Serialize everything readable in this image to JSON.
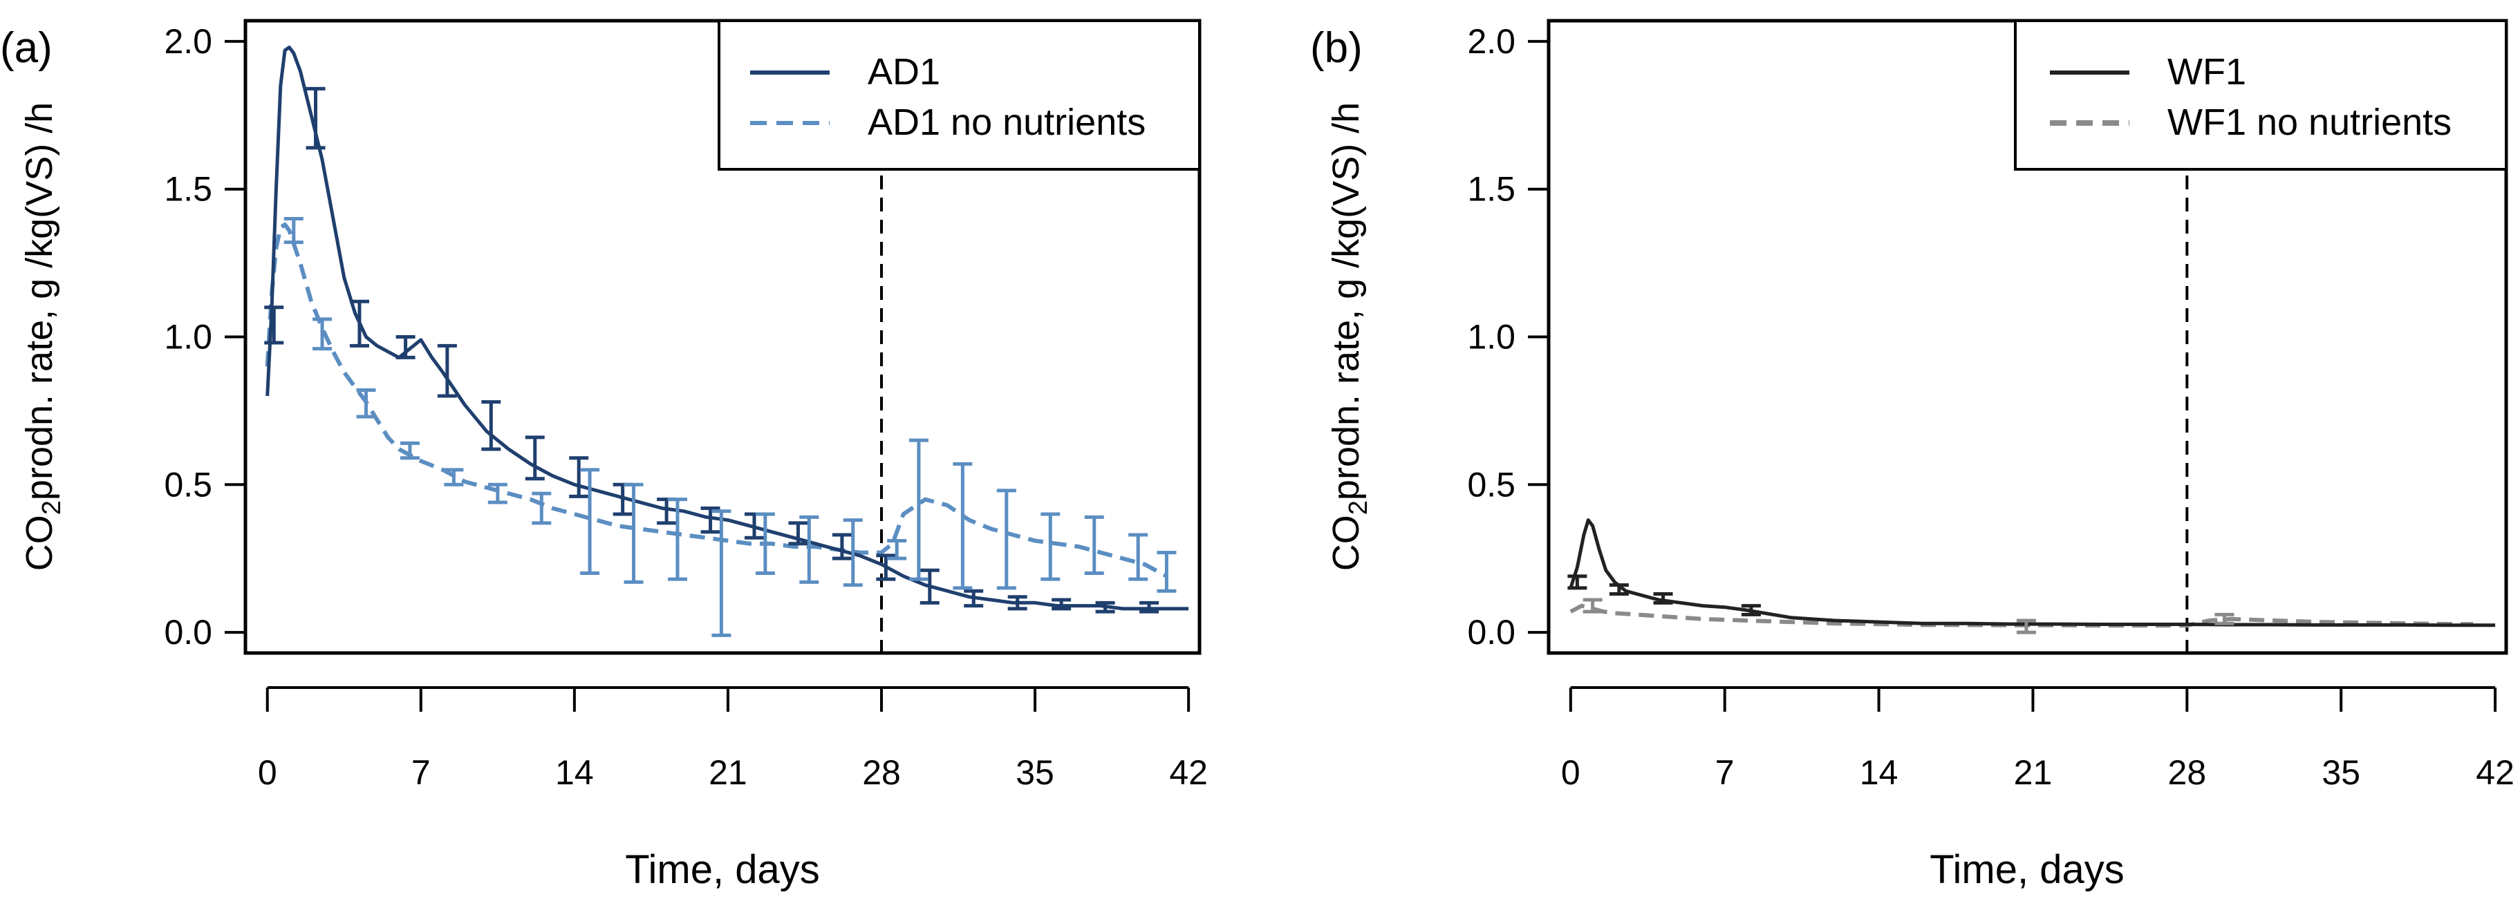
{
  "figure": {
    "panels_note": ""
  },
  "chart_data": [
    {
      "type": "line",
      "panel_label": "(a)",
      "xlabel": "Time, days",
      "ylabel_parts": [
        "CO",
        "2",
        "prodn. rate, g /kg(VS) /h"
      ],
      "xlim": [
        -1,
        42.5
      ],
      "ylim": [
        -0.07,
        2.07
      ],
      "x_ticks": [
        0,
        7,
        14,
        21,
        28,
        35,
        42
      ],
      "x_tick_labels": [
        "0",
        "7",
        "14",
        "21",
        "28",
        "35",
        "42"
      ],
      "y_ticks": [
        0.0,
        0.5,
        1.0,
        1.5,
        2.0
      ],
      "y_tick_labels": [
        "0.0",
        "0.5",
        "1.0",
        "1.5",
        "2.0"
      ],
      "vline_x": 28,
      "legend_position": "top-right",
      "series": [
        {
          "name": "AD1",
          "color": "#1F3F6E",
          "dash": "solid",
          "x": [
            0.0,
            0.2,
            0.4,
            0.6,
            0.8,
            1.0,
            1.2,
            1.5,
            2.0,
            2.5,
            3.0,
            3.5,
            4.0,
            4.5,
            5.0,
            5.5,
            6.0,
            6.5,
            7.0,
            7.5,
            8.0,
            9.0,
            10.0,
            11.0,
            12.0,
            13.0,
            14.0,
            15.0,
            16.0,
            17.0,
            18.0,
            19.0,
            20.0,
            21.0,
            22.0,
            23.0,
            24.0,
            25.0,
            26.0,
            27.0,
            28.0,
            29.0,
            30.0,
            31.0,
            32.0,
            33.0,
            34.0,
            35.0,
            36.0,
            37.0,
            38.0,
            39.0,
            40.0,
            41.0,
            42.0
          ],
          "values": [
            0.8,
            1.1,
            1.5,
            1.85,
            1.97,
            1.98,
            1.96,
            1.9,
            1.75,
            1.6,
            1.4,
            1.2,
            1.08,
            1.0,
            0.97,
            0.95,
            0.93,
            0.96,
            0.99,
            0.93,
            0.88,
            0.77,
            0.68,
            0.62,
            0.57,
            0.53,
            0.5,
            0.48,
            0.46,
            0.44,
            0.42,
            0.41,
            0.39,
            0.38,
            0.36,
            0.34,
            0.32,
            0.3,
            0.28,
            0.26,
            0.23,
            0.19,
            0.16,
            0.14,
            0.12,
            0.11,
            0.1,
            0.1,
            0.09,
            0.09,
            0.09,
            0.08,
            0.08,
            0.08,
            0.08
          ]
        },
        {
          "name": "AD1 no nutrients",
          "color": "#5B8EC2",
          "dash": "dashed",
          "x": [
            0.0,
            0.2,
            0.4,
            0.6,
            0.8,
            1.0,
            1.5,
            2.0,
            2.5,
            3.0,
            3.5,
            4.0,
            4.5,
            5.0,
            5.5,
            6.0,
            7.0,
            8.0,
            9.0,
            10.0,
            11.0,
            12.0,
            13.0,
            14.0,
            15.0,
            16.0,
            17.0,
            18.0,
            19.0,
            20.0,
            21.0,
            22.0,
            23.0,
            24.0,
            25.0,
            26.0,
            27.0,
            28.0,
            28.5,
            29.0,
            30.0,
            31.0,
            32.0,
            33.0,
            34.0,
            35.0,
            36.0,
            37.0,
            38.0,
            39.0,
            40.0,
            41.0
          ],
          "values": [
            0.9,
            1.15,
            1.3,
            1.37,
            1.38,
            1.36,
            1.25,
            1.12,
            1.03,
            0.95,
            0.88,
            0.83,
            0.78,
            0.72,
            0.66,
            0.62,
            0.58,
            0.55,
            0.51,
            0.49,
            0.47,
            0.45,
            0.42,
            0.4,
            0.38,
            0.36,
            0.35,
            0.34,
            0.33,
            0.32,
            0.31,
            0.3,
            0.3,
            0.29,
            0.29,
            0.28,
            0.27,
            0.27,
            0.3,
            0.4,
            0.45,
            0.43,
            0.38,
            0.35,
            0.33,
            0.31,
            0.3,
            0.29,
            0.27,
            0.25,
            0.23,
            0.19
          ]
        }
      ],
      "error_bars": [
        {
          "series": "AD1",
          "x": 0.3,
          "low": 0.98,
          "high": 1.1
        },
        {
          "series": "AD1",
          "x": 2.2,
          "low": 1.64,
          "high": 1.84
        },
        {
          "series": "AD1",
          "x": 4.2,
          "low": 0.97,
          "high": 1.12
        },
        {
          "series": "AD1",
          "x": 6.3,
          "low": 0.93,
          "high": 1.0
        },
        {
          "series": "AD1",
          "x": 8.2,
          "low": 0.8,
          "high": 0.97
        },
        {
          "series": "AD1",
          "x": 10.2,
          "low": 0.62,
          "high": 0.78
        },
        {
          "series": "AD1",
          "x": 12.2,
          "low": 0.52,
          "high": 0.66
        },
        {
          "series": "AD1",
          "x": 14.2,
          "low": 0.46,
          "high": 0.59
        },
        {
          "series": "AD1",
          "x": 16.2,
          "low": 0.4,
          "high": 0.5
        },
        {
          "series": "AD1",
          "x": 18.2,
          "low": 0.37,
          "high": 0.45
        },
        {
          "series": "AD1",
          "x": 20.2,
          "low": 0.34,
          "high": 0.42
        },
        {
          "series": "AD1",
          "x": 22.2,
          "low": 0.32,
          "high": 0.4
        },
        {
          "series": "AD1",
          "x": 24.2,
          "low": 0.3,
          "high": 0.37
        },
        {
          "series": "AD1",
          "x": 26.2,
          "low": 0.25,
          "high": 0.33
        },
        {
          "series": "AD1",
          "x": 28.2,
          "low": 0.18,
          "high": 0.26
        },
        {
          "series": "AD1",
          "x": 30.2,
          "low": 0.1,
          "high": 0.21
        },
        {
          "series": "AD1",
          "x": 32.2,
          "low": 0.09,
          "high": 0.14
        },
        {
          "series": "AD1",
          "x": 34.2,
          "low": 0.08,
          "high": 0.12
        },
        {
          "series": "AD1",
          "x": 36.2,
          "low": 0.08,
          "high": 0.11
        },
        {
          "series": "AD1",
          "x": 38.2,
          "low": 0.07,
          "high": 0.1
        },
        {
          "series": "AD1",
          "x": 40.2,
          "low": 0.07,
          "high": 0.1
        },
        {
          "series": "AD1 no nutrients",
          "x": 1.2,
          "low": 1.32,
          "high": 1.4
        },
        {
          "series": "AD1 no nutrients",
          "x": 2.5,
          "low": 0.96,
          "high": 1.06
        },
        {
          "series": "AD1 no nutrients",
          "x": 4.5,
          "low": 0.73,
          "high": 0.82
        },
        {
          "series": "AD1 no nutrients",
          "x": 6.5,
          "low": 0.59,
          "high": 0.64
        },
        {
          "series": "AD1 no nutrients",
          "x": 8.5,
          "low": 0.5,
          "high": 0.55
        },
        {
          "series": "AD1 no nutrients",
          "x": 10.5,
          "low": 0.44,
          "high": 0.5
        },
        {
          "series": "AD1 no nutrients",
          "x": 12.5,
          "low": 0.37,
          "high": 0.47
        },
        {
          "series": "AD1 no nutrients",
          "x": 14.7,
          "low": 0.2,
          "high": 0.55
        },
        {
          "series": "AD1 no nutrients",
          "x": 16.7,
          "low": 0.17,
          "high": 0.5
        },
        {
          "series": "AD1 no nutrients",
          "x": 18.7,
          "low": 0.18,
          "high": 0.45
        },
        {
          "series": "AD1 no nutrients",
          "x": 20.7,
          "low": -0.01,
          "high": 0.41
        },
        {
          "series": "AD1 no nutrients",
          "x": 22.7,
          "low": 0.2,
          "high": 0.4
        },
        {
          "series": "AD1 no nutrients",
          "x": 24.7,
          "low": 0.17,
          "high": 0.39
        },
        {
          "series": "AD1 no nutrients",
          "x": 26.7,
          "low": 0.16,
          "high": 0.38
        },
        {
          "series": "AD1 no nutrients",
          "x": 28.7,
          "low": 0.25,
          "high": 0.31
        },
        {
          "series": "AD1 no nutrients",
          "x": 29.7,
          "low": 0.18,
          "high": 0.65
        },
        {
          "series": "AD1 no nutrients",
          "x": 31.7,
          "low": 0.15,
          "high": 0.57
        },
        {
          "series": "AD1 no nutrients",
          "x": 33.7,
          "low": 0.15,
          "high": 0.48
        },
        {
          "series": "AD1 no nutrients",
          "x": 35.7,
          "low": 0.18,
          "high": 0.4
        },
        {
          "series": "AD1 no nutrients",
          "x": 37.7,
          "low": 0.2,
          "high": 0.39
        },
        {
          "series": "AD1 no nutrients",
          "x": 39.7,
          "low": 0.18,
          "high": 0.33
        },
        {
          "series": "AD1 no nutrients",
          "x": 41.0,
          "low": 0.14,
          "high": 0.27
        }
      ]
    },
    {
      "type": "line",
      "panel_label": "(b)",
      "xlabel": "Time, days",
      "ylabel_parts": [
        "CO",
        "2",
        "prodn. rate, g /kg(VS) /h"
      ],
      "xlim": [
        -1,
        42.5
      ],
      "ylim": [
        -0.07,
        2.07
      ],
      "x_ticks": [
        0,
        7,
        14,
        21,
        28,
        35,
        42
      ],
      "x_tick_labels": [
        "0",
        "7",
        "14",
        "21",
        "28",
        "35",
        "42"
      ],
      "y_ticks": [
        0.0,
        0.5,
        1.0,
        1.5,
        2.0
      ],
      "y_tick_labels": [
        "0.0",
        "0.5",
        "1.0",
        "1.5",
        "2.0"
      ],
      "vline_x": 28,
      "legend_position": "top-right",
      "series": [
        {
          "name": "WF1",
          "color": "#222222",
          "dash": "solid",
          "x": [
            0.0,
            0.3,
            0.6,
            0.8,
            1.0,
            1.3,
            1.6,
            2.0,
            2.5,
            3.0,
            3.5,
            4.0,
            5.0,
            6.0,
            7.0,
            8.0,
            10.0,
            12.0,
            14.0,
            16.0,
            18.0,
            20.0,
            22.0,
            24.0,
            26.0,
            28.0,
            30.0,
            32.0,
            34.0,
            36.0,
            38.0,
            40.0,
            42.0
          ],
          "values": [
            0.15,
            0.22,
            0.33,
            0.38,
            0.36,
            0.28,
            0.21,
            0.17,
            0.14,
            0.13,
            0.12,
            0.11,
            0.1,
            0.09,
            0.085,
            0.075,
            0.05,
            0.04,
            0.035,
            0.03,
            0.03,
            0.028,
            0.028,
            0.027,
            0.027,
            0.027,
            0.026,
            0.026,
            0.025,
            0.025,
            0.025,
            0.024,
            0.024
          ]
        },
        {
          "name": "WF1 no nutrients",
          "color": "#8A8A8A",
          "dash": "dashed",
          "x": [
            0.0,
            0.5,
            1.0,
            1.5,
            2.0,
            3.0,
            4.0,
            5.0,
            6.0,
            8.0,
            10.0,
            12.0,
            14.0,
            16.0,
            18.0,
            20.0,
            22.0,
            24.0,
            26.0,
            28.0,
            29.0,
            30.0,
            32.0,
            34.0,
            36.0,
            38.0,
            40.0,
            41.0
          ],
          "values": [
            0.07,
            0.09,
            0.08,
            0.07,
            0.065,
            0.06,
            0.055,
            0.05,
            0.045,
            0.04,
            0.035,
            0.03,
            0.028,
            0.025,
            0.025,
            0.024,
            0.024,
            0.023,
            0.023,
            0.023,
            0.04,
            0.045,
            0.04,
            0.035,
            0.033,
            0.03,
            0.028,
            0.028
          ]
        }
      ],
      "error_bars": [
        {
          "series": "WF1",
          "x": 0.3,
          "low": 0.15,
          "high": 0.19
        },
        {
          "series": "WF1",
          "x": 2.2,
          "low": 0.13,
          "high": 0.16
        },
        {
          "series": "WF1",
          "x": 4.2,
          "low": 0.1,
          "high": 0.13
        },
        {
          "series": "WF1",
          "x": 8.2,
          "low": 0.06,
          "high": 0.09
        },
        {
          "series": "WF1 no nutrients",
          "x": 1.0,
          "low": 0.07,
          "high": 0.11
        },
        {
          "series": "WF1 no nutrients",
          "x": 20.7,
          "low": 0.0,
          "high": 0.04
        },
        {
          "series": "WF1 no nutrients",
          "x": 29.7,
          "low": 0.03,
          "high": 0.06
        }
      ]
    }
  ]
}
